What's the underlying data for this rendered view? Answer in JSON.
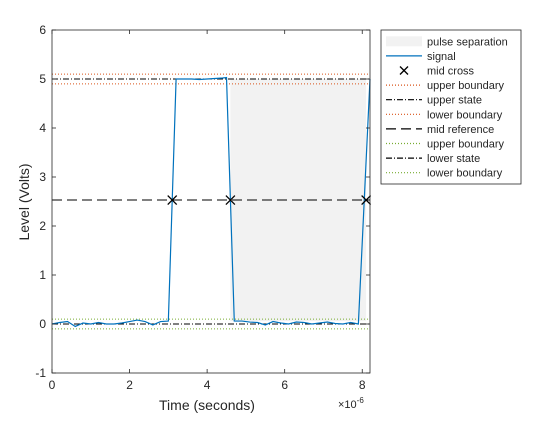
{
  "chart_data": {
    "type": "line",
    "title": "",
    "xlabel": "Time (seconds)",
    "ylabel": "Level (Volts)",
    "x_exponent_label": "×10",
    "x_exponent": "-6",
    "xlim": [
      0,
      8.2e-06
    ],
    "ylim": [
      -1,
      6
    ],
    "xticks": [
      0,
      2e-06,
      4e-06,
      6e-06,
      8e-06
    ],
    "xtick_labels": [
      "0",
      "2",
      "4",
      "6",
      "8"
    ],
    "yticks": [
      -1,
      0,
      1,
      2,
      3,
      4,
      5,
      6
    ],
    "ytick_labels": [
      "-1",
      "0",
      "1",
      "2",
      "3",
      "4",
      "5",
      "6"
    ],
    "grid": false,
    "legend_position": "outside-top-right",
    "pulse_separation": {
      "x_start": 4.6e-06,
      "x_end": 8.1e-06,
      "y_low": 0.06,
      "y_high": 5.0,
      "color": "#f2f2f2"
    },
    "signal": {
      "name": "signal",
      "color": "#0072bd",
      "x": [
        0,
        2e-07,
        4e-07,
        6e-07,
        8e-07,
        1e-06,
        1.2e-06,
        1.4e-06,
        1.6e-06,
        1.8e-06,
        2e-06,
        2.2e-06,
        2.4e-06,
        2.6e-06,
        2.8e-06,
        3e-06,
        3.2e-06,
        3.4e-06,
        3.6e-06,
        3.8e-06,
        4e-06,
        4.2e-06,
        4.4e-06,
        4.5e-06,
        4.7e-06,
        4.9e-06,
        5.1e-06,
        5.3e-06,
        5.5e-06,
        5.7e-06,
        5.9e-06,
        6.1e-06,
        6.3e-06,
        6.5e-06,
        6.7e-06,
        6.9e-06,
        7.1e-06,
        7.3e-06,
        7.5e-06,
        7.7e-06,
        7.9e-06,
        8.2e-06
      ],
      "y": [
        0.0,
        0.03,
        0.05,
        -0.05,
        0.02,
        0.0,
        0.03,
        0.0,
        0.0,
        0.02,
        0.05,
        0.08,
        0.05,
        -0.02,
        0.05,
        0.06,
        5.0,
        5.0,
        5.0,
        4.99,
        5.0,
        5.01,
        5.02,
        5.03,
        0.06,
        0.06,
        0.04,
        0.03,
        -0.02,
        0.05,
        0.02,
        0.0,
        0.04,
        0.03,
        0.0,
        0.02,
        0.04,
        0.01,
        0.0,
        0.03,
        0.0,
        5.0
      ]
    },
    "mid_cross": {
      "name": "mid cross",
      "x": [
        3.1e-06,
        4.6e-06,
        8.1e-06
      ],
      "y": [
        2.53,
        2.53,
        2.53
      ],
      "marker": "x",
      "color": "#000000"
    },
    "reference_lines": [
      {
        "role": "high-upper-boundary",
        "y": 5.1,
        "color": "#d95319",
        "style": "dotted"
      },
      {
        "role": "high-state",
        "y": 5.0,
        "color": "#000000",
        "style": "dashdot"
      },
      {
        "role": "high-lower-boundary",
        "y": 4.9,
        "color": "#d95319",
        "style": "dotted"
      },
      {
        "role": "mid-reference",
        "y": 2.53,
        "color": "#000000",
        "style": "dashed"
      },
      {
        "role": "low-upper-boundary",
        "y": 0.1,
        "color": "#77ac30",
        "style": "dotted"
      },
      {
        "role": "low-state",
        "y": 0.0,
        "color": "#000000",
        "style": "dashdot"
      },
      {
        "role": "low-lower-boundary",
        "y": -0.1,
        "color": "#77ac30",
        "style": "dotted"
      }
    ],
    "legend": [
      {
        "label": "pulse separation",
        "kind": "patch",
        "color": "#f2f2f2"
      },
      {
        "label": "signal",
        "kind": "line",
        "color": "#0072bd",
        "style": "solid"
      },
      {
        "label": "mid cross",
        "kind": "marker",
        "color": "#000000"
      },
      {
        "label": "upper boundary",
        "kind": "line",
        "color": "#d95319",
        "style": "dotted"
      },
      {
        "label": "upper state",
        "kind": "line",
        "color": "#000000",
        "style": "dashdot"
      },
      {
        "label": "lower boundary",
        "kind": "line",
        "color": "#d95319",
        "style": "dotted"
      },
      {
        "label": "mid reference",
        "kind": "line",
        "color": "#000000",
        "style": "dashed"
      },
      {
        "label": "upper boundary",
        "kind": "line",
        "color": "#77ac30",
        "style": "dotted"
      },
      {
        "label": "lower state",
        "kind": "line",
        "color": "#000000",
        "style": "dashdot"
      },
      {
        "label": "lower boundary",
        "kind": "line",
        "color": "#77ac30",
        "style": "dotted"
      }
    ]
  }
}
